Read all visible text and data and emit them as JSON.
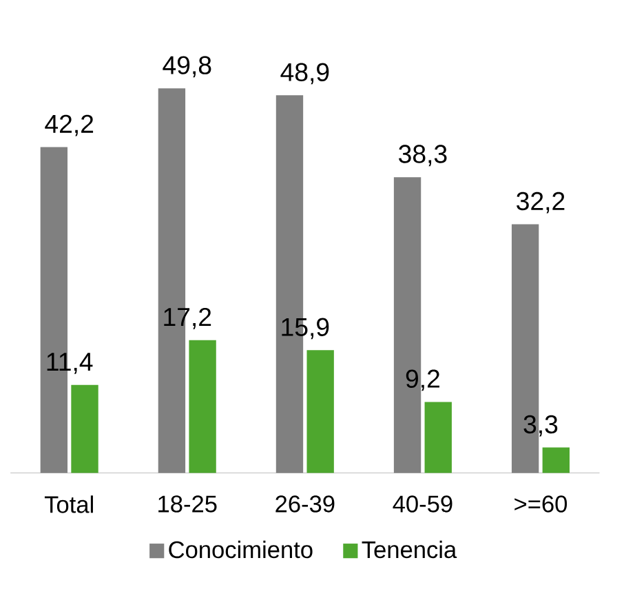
{
  "chart_data": {
    "type": "bar",
    "categories": [
      "Total",
      "18-25",
      "26-39",
      "40-59",
      ">=60"
    ],
    "series": [
      {
        "name": "Conocimiento",
        "color": "#808080",
        "values": [
          42.2,
          49.8,
          48.9,
          38.3,
          32.2
        ],
        "value_labels": [
          "42,2",
          "49,8",
          "48,9",
          "38,3",
          "32,2"
        ]
      },
      {
        "name": "Tenencia",
        "color": "#4ea72e",
        "values": [
          11.4,
          17.2,
          15.9,
          9.2,
          3.3
        ],
        "value_labels": [
          "11,4",
          "17,2",
          "15,9",
          "9,2",
          "3,3"
        ]
      }
    ],
    "tick_labels": "x",
    "legend": "bottom"
  }
}
